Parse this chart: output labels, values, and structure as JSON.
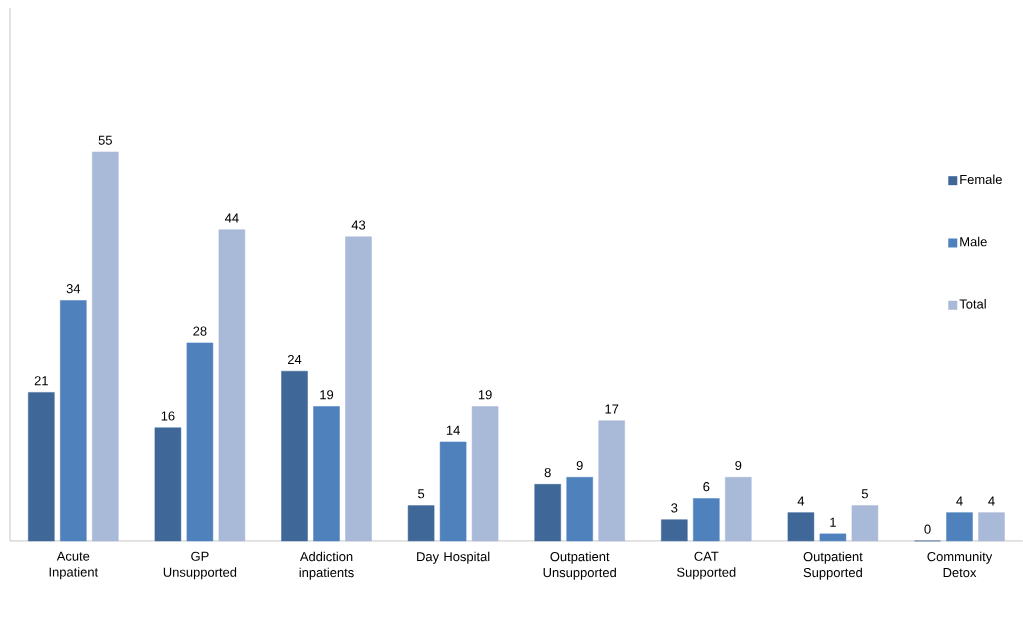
{
  "chart_data": {
    "type": "bar",
    "categories": [
      "Acute Inpatient",
      "GP Unsupported",
      "Addiction inpatients",
      "Day Hospital",
      "Outpatient Unsupported",
      "CAT Supported",
      "Outpatient Supported",
      "Community Detox"
    ],
    "series": [
      {
        "name": "Female",
        "color": "#3f6899",
        "values": [
          21,
          16,
          24,
          5,
          8,
          3,
          4,
          0
        ]
      },
      {
        "name": "Male",
        "color": "#4f81bd",
        "values": [
          34,
          28,
          19,
          14,
          9,
          6,
          1,
          4
        ]
      },
      {
        "name": "Total",
        "color": "#a9b9d8",
        "values": [
          55,
          44,
          43,
          19,
          17,
          9,
          5,
          4
        ]
      }
    ],
    "data_labels": true,
    "legend": "right",
    "grid": false
  }
}
